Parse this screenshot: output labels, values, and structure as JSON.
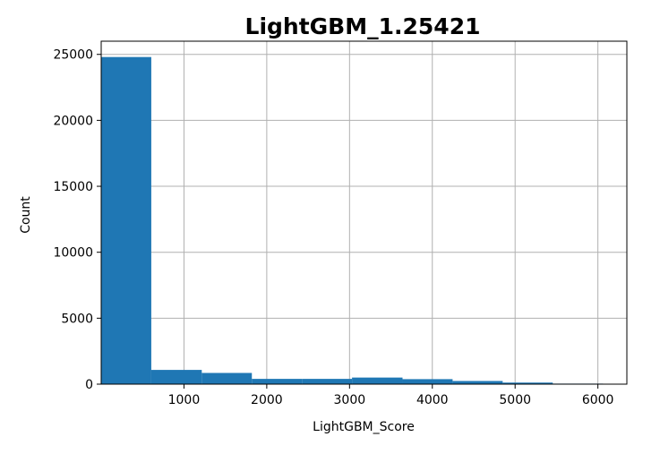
{
  "chart_data": {
    "type": "bar",
    "title": "LightGBM_1.25421",
    "xlabel": "LightGBM_Score",
    "ylabel": "Count",
    "xlim": [
      0,
      6350
    ],
    "ylim": [
      0,
      26000
    ],
    "xticks": [
      1000,
      2000,
      3000,
      4000,
      5000,
      6000
    ],
    "yticks": [
      0,
      5000,
      10000,
      15000,
      20000,
      25000
    ],
    "xtick_labels": [
      "1000",
      "2000",
      "3000",
      "4000",
      "5000",
      "6000"
    ],
    "ytick_labels": [
      "0",
      "5000",
      "10000",
      "15000",
      "20000",
      "25000"
    ],
    "grid": true,
    "bar_color": "#1f77b4",
    "bin_edges": [
      0,
      605,
      1215,
      1820,
      2425,
      3030,
      3640,
      4245,
      4850,
      5455,
      6060
    ],
    "values": [
      24800,
      1080,
      850,
      400,
      400,
      500,
      380,
      240,
      120,
      40
    ]
  }
}
